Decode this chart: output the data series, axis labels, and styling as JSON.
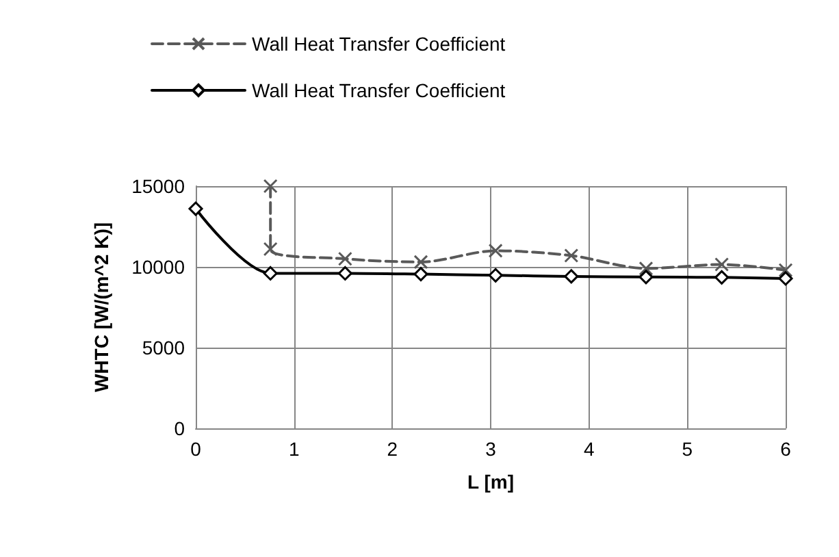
{
  "chart_data": {
    "type": "line",
    "xlabel": "L [m]",
    "ylabel": "WHTC [W/(m^2 K)]",
    "xlim": [
      0,
      6
    ],
    "xticks": [
      0,
      1,
      2,
      3,
      4,
      5,
      6
    ],
    "ylim": [
      0,
      15000
    ],
    "yticks": [
      0,
      5000,
      10000,
      15000
    ],
    "grid": true,
    "legend": "top",
    "series": [
      {
        "name": "Wall Heat Transfer Coefficient",
        "color": "#595959",
        "marker": "cross",
        "line_style": "dashed",
        "x": [
          0.76,
          0.76,
          1.52,
          2.29,
          3.05,
          3.82,
          4.58,
          5.35,
          6.0
        ],
        "values": [
          15000,
          11100,
          10500,
          10300,
          11000,
          10700,
          9900,
          10150,
          9800
        ]
      },
      {
        "name": "Wall Heat Transfer Coefficient",
        "color": "#000000",
        "marker": "diamond",
        "line_style": "solid",
        "x": [
          0,
          0.76,
          1.52,
          2.29,
          3.05,
          3.82,
          4.58,
          5.35,
          6.0
        ],
        "values": [
          13600,
          9600,
          9600,
          9550,
          9480,
          9410,
          9370,
          9350,
          9280
        ]
      }
    ]
  }
}
